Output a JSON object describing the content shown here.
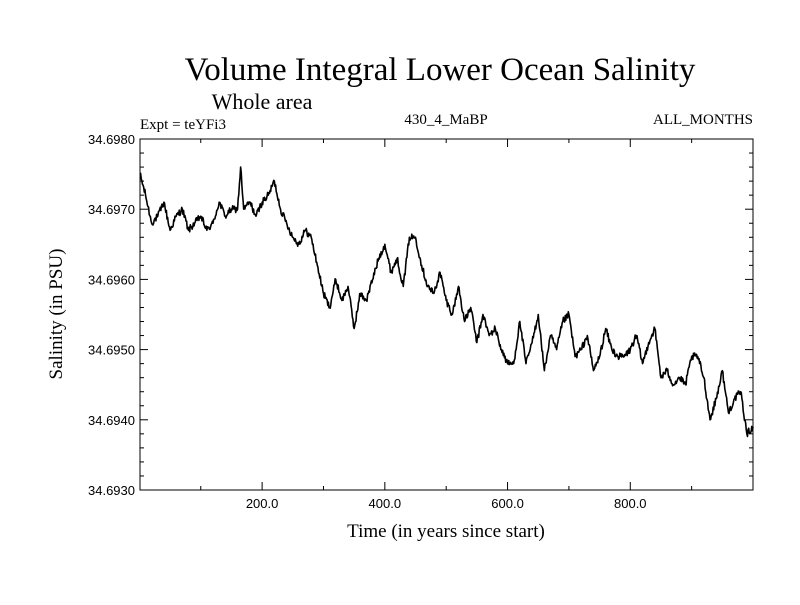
{
  "chart_data": {
    "type": "line",
    "title": "Volume Integral Lower Ocean Salinity",
    "subtitle": "Whole area",
    "header_left": "Expt = teYFi3",
    "header_center": "430_4_MaBP",
    "header_right": "ALL_MONTHS",
    "xlabel": "Time (in years since start)",
    "ylabel": "Salinity (in PSU)",
    "xlim": [
      1,
      1000
    ],
    "ylim": [
      34.693,
      34.698
    ],
    "x_ticks": [
      200,
      400,
      600,
      800
    ],
    "x_tick_labels": [
      "200.0",
      "400.0",
      "600.0",
      "800.0"
    ],
    "y_ticks": [
      34.693,
      34.694,
      34.695,
      34.696,
      34.697,
      34.698
    ],
    "y_tick_labels": [
      "34.6930",
      "34.6940",
      "34.6950",
      "34.6960",
      "34.6970",
      "34.6980"
    ],
    "series": [
      {
        "name": "salinity",
        "color": "#000000",
        "x": [
          1,
          10,
          20,
          30,
          40,
          50,
          60,
          70,
          80,
          90,
          100,
          110,
          120,
          130,
          140,
          150,
          160,
          165,
          170,
          180,
          190,
          200,
          210,
          220,
          230,
          240,
          250,
          260,
          270,
          280,
          290,
          300,
          310,
          320,
          330,
          340,
          350,
          360,
          370,
          380,
          390,
          400,
          410,
          420,
          430,
          440,
          450,
          460,
          470,
          480,
          490,
          500,
          510,
          520,
          530,
          540,
          550,
          560,
          570,
          580,
          590,
          600,
          610,
          620,
          630,
          640,
          650,
          660,
          670,
          680,
          690,
          700,
          710,
          720,
          730,
          740,
          750,
          760,
          770,
          780,
          790,
          800,
          810,
          820,
          830,
          840,
          850,
          860,
          870,
          880,
          890,
          900,
          910,
          920,
          930,
          940,
          950,
          960,
          970,
          980,
          990,
          1000
        ],
        "values": [
          34.6975,
          34.6972,
          34.6968,
          34.6969,
          34.6971,
          34.6967,
          34.6969,
          34.697,
          34.6967,
          34.6968,
          34.6969,
          34.6967,
          34.6968,
          34.6971,
          34.6969,
          34.697,
          34.697,
          34.6976,
          34.697,
          34.6971,
          34.6969,
          34.6971,
          34.6972,
          34.6974,
          34.697,
          34.6968,
          34.6966,
          34.6965,
          34.6967,
          34.6966,
          34.6962,
          34.6958,
          34.6956,
          34.696,
          34.6957,
          34.6959,
          34.6953,
          34.6958,
          34.6957,
          34.696,
          34.6963,
          34.6965,
          34.6961,
          34.6963,
          34.6959,
          34.6966,
          34.6966,
          34.6962,
          34.6959,
          34.6958,
          34.6961,
          34.6957,
          34.6955,
          34.6959,
          34.6954,
          34.6956,
          34.6951,
          34.6955,
          34.6952,
          34.6953,
          34.695,
          34.6948,
          34.6948,
          34.6954,
          34.6948,
          34.6951,
          34.6955,
          34.6947,
          34.6952,
          34.695,
          34.6954,
          34.6955,
          34.6949,
          34.695,
          34.6952,
          34.6947,
          34.6949,
          34.6953,
          34.695,
          34.6949,
          34.6949,
          34.695,
          34.6952,
          34.6948,
          34.6951,
          34.6953,
          34.6946,
          34.6947,
          34.6945,
          34.6946,
          34.6945,
          34.6949,
          34.6949,
          34.6946,
          34.694,
          34.6943,
          34.6947,
          34.6941,
          34.6943,
          34.6944,
          34.6938,
          34.6939
        ]
      }
    ]
  }
}
